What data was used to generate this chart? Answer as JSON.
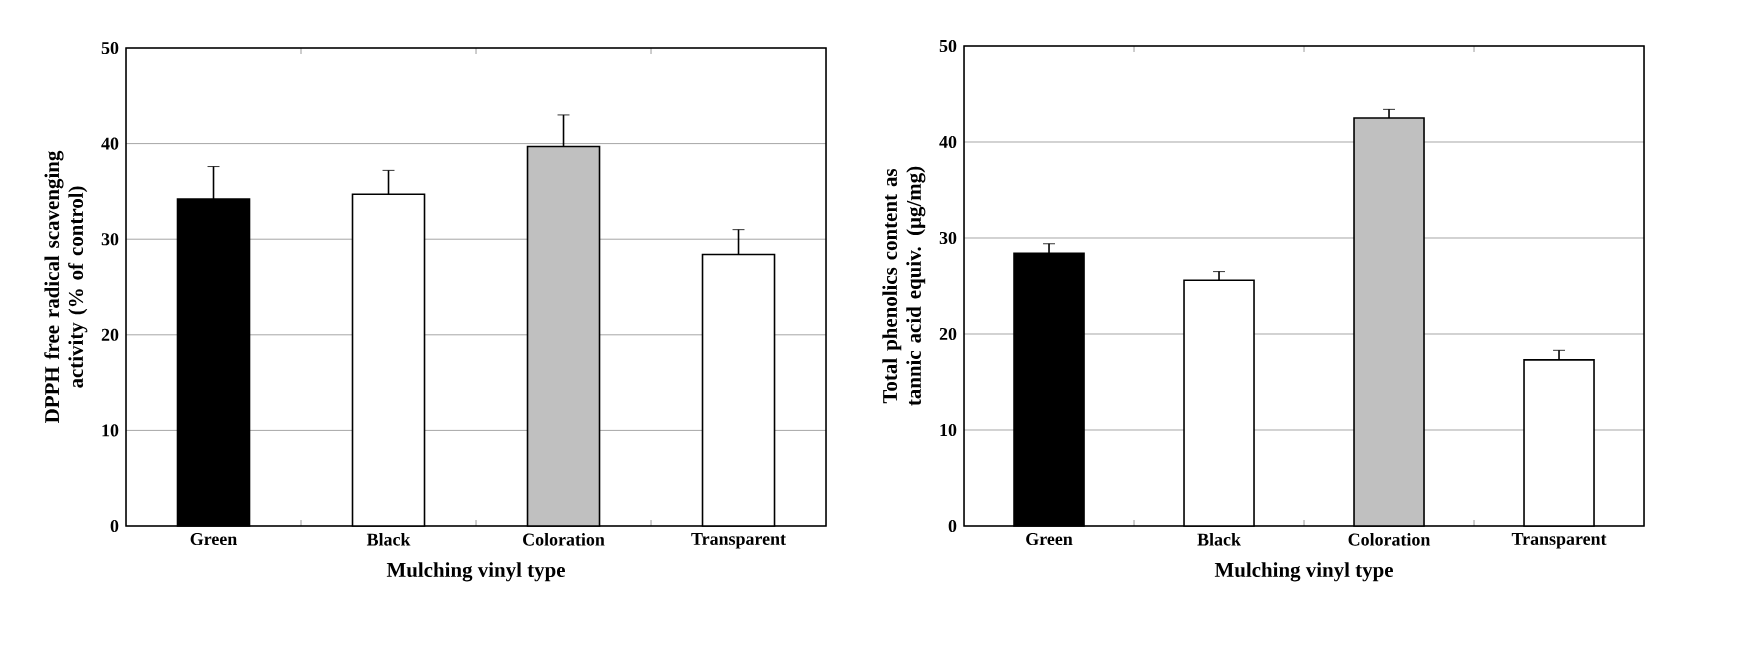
{
  "chart_data": [
    {
      "type": "bar",
      "xlabel": "Mulching vinyl type",
      "ylabel": "DPPH free radical scavenging activity (% of control)",
      "categories": [
        "Green",
        "Black",
        "Coloration",
        "Transparent"
      ],
      "values": [
        34.2,
        34.7,
        39.7,
        28.4
      ],
      "errors": [
        3.4,
        2.5,
        3.3,
        2.6
      ],
      "colors": [
        "#000000",
        "#ffffff",
        "#c0c0c0",
        "#ffffff"
      ],
      "ylim": [
        0,
        50
      ],
      "yticks": [
        0,
        10,
        20,
        30,
        40,
        50
      ],
      "grid": "y"
    },
    {
      "type": "bar",
      "xlabel": "Mulching vinyl type",
      "ylabel": "Total phenolics content as tannic acid equiv. (μg/mg)",
      "categories": [
        "Green",
        "Black",
        "Coloration",
        "Transparent"
      ],
      "values": [
        28.4,
        25.6,
        42.5,
        17.3
      ],
      "errors": [
        1.0,
        0.9,
        0.9,
        1.0
      ],
      "colors": [
        "#000000",
        "#ffffff",
        "#c0c0c0",
        "#ffffff"
      ],
      "ylim": [
        0,
        50
      ],
      "yticks": [
        0,
        10,
        20,
        30,
        40,
        50
      ],
      "grid": "y"
    }
  ]
}
